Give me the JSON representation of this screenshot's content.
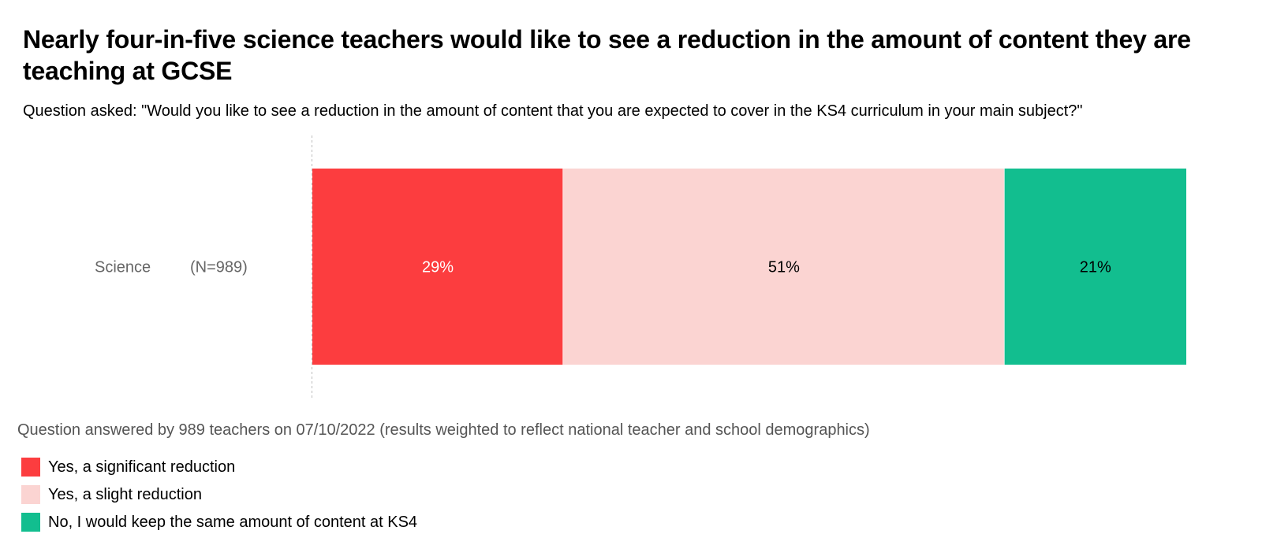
{
  "title": "Nearly four-in-five science teachers would like to see a reduction in the amount of content they are teaching at GCSE",
  "subtitle": "Question asked: \"Would you like to see a reduction in the amount of content that you are expected to cover in the KS4 curriculum in your main subject?\"",
  "footnote": "Question answered by 989 teachers on 07/10/2022 (results weighted to reflect national teacher and school demographics)",
  "chart_data": {
    "type": "bar",
    "orientation": "horizontal",
    "stacked": true,
    "categories": [
      "Science"
    ],
    "category_notes": [
      "(N=989)"
    ],
    "series": [
      {
        "name": "Yes, a significant reduction",
        "values": [
          29
        ],
        "label": "29%",
        "color": "#fc3d3f",
        "label_color": "#ffffff"
      },
      {
        "name": "Yes, a slight reduction",
        "values": [
          51
        ],
        "label": "51%",
        "color": "#fbd4d2",
        "label_color": "#000000"
      },
      {
        "name": "No, I would keep the same amount of content at KS4",
        "values": [
          21
        ],
        "label": "21%",
        "color": "#12be8f",
        "label_color": "#000000"
      }
    ],
    "xlim": [
      0,
      101
    ],
    "grid": false,
    "legend_position": "bottom-left"
  }
}
